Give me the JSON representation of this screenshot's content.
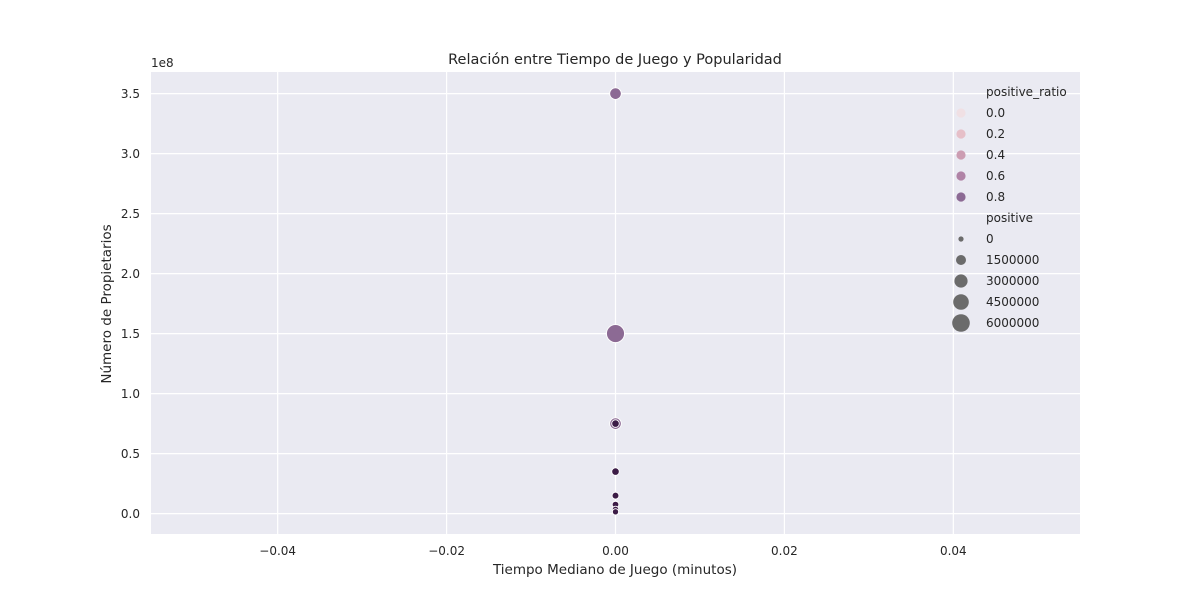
{
  "chart_data": {
    "type": "scatter",
    "title": "Relación entre Tiempo de Juego y Popularidad",
    "xlabel": "Tiempo Mediano de Juego (minutos)",
    "ylabel": "Número de Propietarios",
    "y_offset_label": "1e8",
    "xlim": [
      -0.055,
      0.055
    ],
    "ylim": [
      -0.17,
      3.68
    ],
    "y_scale_factor": 100000000,
    "x_ticks": [
      -0.04,
      -0.02,
      0.0,
      0.02,
      0.04
    ],
    "x_tick_labels": [
      "−0.04",
      "−0.02",
      "0.00",
      "0.02",
      "0.04"
    ],
    "y_ticks": [
      0.0,
      0.5,
      1.0,
      1.5,
      2.0,
      2.5,
      3.0,
      3.5
    ],
    "y_tick_labels": [
      "0.0",
      "0.5",
      "1.0",
      "1.5",
      "2.0",
      "2.5",
      "3.0",
      "3.5"
    ],
    "grid": true,
    "background": "#eaeaf2",
    "legend_position": "top-right",
    "hue": {
      "name": "positive_ratio",
      "entries": [
        {
          "label": "0.0",
          "color": "#f0e0e4"
        },
        {
          "label": "0.2",
          "color": "#e6bfc8"
        },
        {
          "label": "0.4",
          "color": "#cc9db2"
        },
        {
          "label": "0.6",
          "color": "#b083a6"
        },
        {
          "label": "0.8",
          "color": "#8c6a94"
        }
      ]
    },
    "size": {
      "name": "positive",
      "entries": [
        {
          "label": "0",
          "value": 0
        },
        {
          "label": "1500000",
          "value": 1500000
        },
        {
          "label": "3000000",
          "value": 3000000
        },
        {
          "label": "4500000",
          "value": 4500000
        },
        {
          "label": "6000000",
          "value": 6000000
        }
      ]
    },
    "points": [
      {
        "x": 0.0,
        "y": 3.5,
        "positive": 1500000,
        "color": "#8c6a94"
      },
      {
        "x": 0.0,
        "y": 1.5,
        "positive": 6000000,
        "color": "#8c6a94"
      },
      {
        "x": 0.0,
        "y": 0.75,
        "positive": 1500000,
        "color": "#8c6a94"
      },
      {
        "x": 0.0,
        "y": 0.75,
        "positive": 200000,
        "color": "#3c1c46"
      },
      {
        "x": 0.0,
        "y": 0.35,
        "positive": 200000,
        "color": "#3c1c46"
      },
      {
        "x": 0.0,
        "y": 0.15,
        "positive": 100000,
        "color": "#3c1c46"
      },
      {
        "x": 0.0,
        "y": 0.075,
        "positive": 80000,
        "color": "#3c1c46"
      },
      {
        "x": 0.0,
        "y": 0.035,
        "positive": 60000,
        "color": "#3c1c46"
      },
      {
        "x": 0.0,
        "y": 0.015,
        "positive": 40000,
        "color": "#3c1c46"
      }
    ],
    "size_legend_color": "#6b6b6b"
  }
}
